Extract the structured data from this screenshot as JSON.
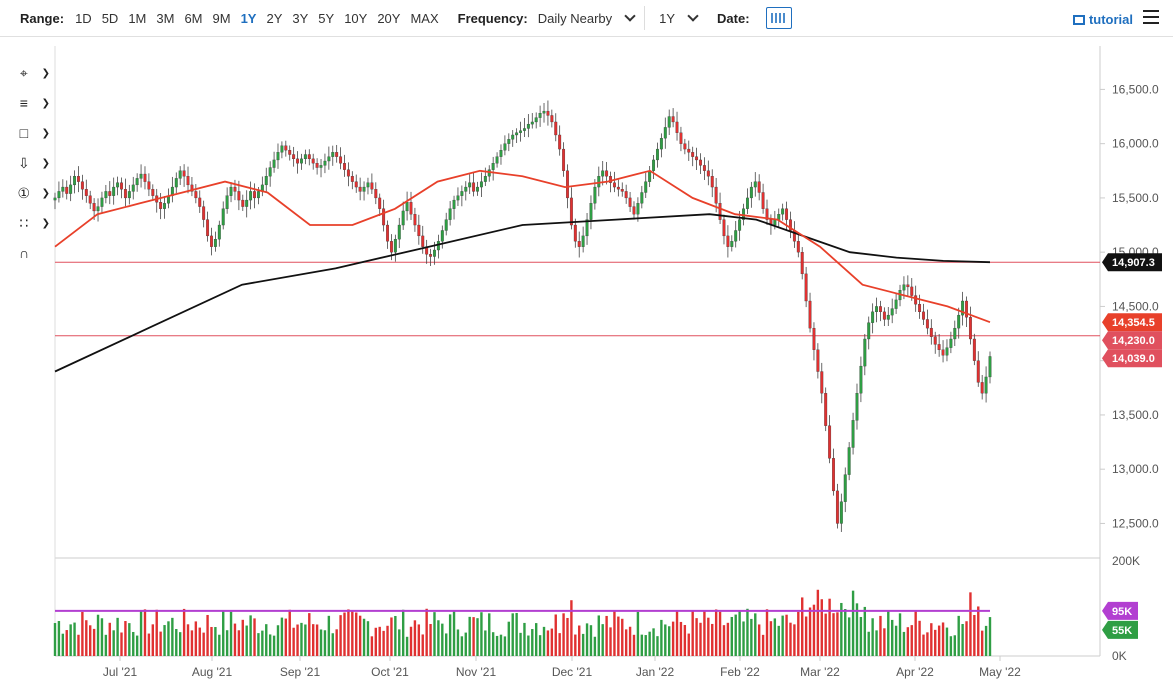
{
  "toolbar": {
    "range_label": "Range:",
    "ranges": [
      "1D",
      "5D",
      "1M",
      "3M",
      "6M",
      "9M",
      "1Y",
      "2Y",
      "3Y",
      "5Y",
      "10Y",
      "20Y",
      "MAX"
    ],
    "active_range": "1Y",
    "frequency_label": "Frequency:",
    "frequency_value": "Daily Nearby",
    "period_value": "1Y",
    "date_label": "Date:",
    "tutorial_label": "tutorial"
  },
  "side_tools": [
    "crosshair-tool-icon",
    "fibonacci-tool-icon",
    "rectangle-tool-icon",
    "arrow-down-tool-icon",
    "counter-tool-icon",
    "pattern-tool-icon",
    "magnet-tool-icon"
  ],
  "colors": {
    "up": "#2f9e44",
    "down": "#e03131",
    "ma_short": "#e8402a",
    "ma_long": "#111111",
    "hline": "#e0505e",
    "vol_avg": "#b23fd1",
    "axis_text": "#555555"
  },
  "chart_data": {
    "type": "candlestick",
    "x_ticks": [
      "Jul '21",
      "Aug '21",
      "Sep '21",
      "Oct '21",
      "Nov '21",
      "Dec '21",
      "Jan '22",
      "Feb '22",
      "Mar '22",
      "Apr '22",
      "May '22"
    ],
    "price_ticks": [
      "16,500.0",
      "16,000.0",
      "15,500.0",
      "15,000.0",
      "14,500.0",
      "14,000.0",
      "13,500.0",
      "13,000.0",
      "12,500.0"
    ],
    "price_tick_values": [
      16500,
      16000,
      15500,
      15000,
      14500,
      14000,
      13500,
      13000,
      12500
    ],
    "ylim": [
      12200,
      16900
    ],
    "volume_ticks": [
      "200K",
      "0K"
    ],
    "volume_tick_values": [
      200000,
      0
    ],
    "volume_ylim": [
      0,
      200000
    ],
    "badges": [
      {
        "label": "14,907.3",
        "value": 14907.3,
        "color": "#111111"
      },
      {
        "label": "14,354.5",
        "value": 14354.5,
        "color": "#e8402a"
      },
      {
        "label": "14,230.0",
        "value": 14230,
        "color": "#e0505e"
      },
      {
        "label": "14,039.0",
        "value": 14039,
        "color": "#e0505e"
      }
    ],
    "horizontal_lines": [
      14907,
      14230
    ],
    "volume_badges": [
      {
        "label": "95K",
        "value": 95000,
        "color": "#b23fd1"
      },
      {
        "label": "55K",
        "value": 55000,
        "color": "#2f9e44"
      }
    ],
    "closes": [
      15500,
      15560,
      15600,
      15540,
      15620,
      15700,
      15650,
      15580,
      15520,
      15450,
      15380,
      15420,
      15500,
      15560,
      15520,
      15600,
      15640,
      15580,
      15500,
      15560,
      15620,
      15680,
      15720,
      15650,
      15580,
      15520,
      15460,
      15400,
      15450,
      15520,
      15600,
      15680,
      15750,
      15700,
      15620,
      15560,
      15500,
      15420,
      15300,
      15150,
      15050,
      15120,
      15250,
      15400,
      15520,
      15600,
      15560,
      15480,
      15420,
      15480,
      15560,
      15500,
      15560,
      15620,
      15700,
      15780,
      15850,
      15920,
      15980,
      15940,
      15900,
      15860,
      15820,
      15860,
      15900,
      15860,
      15820,
      15780,
      15800,
      15840,
      15880,
      15920,
      15880,
      15820,
      15760,
      15700,
      15650,
      15600,
      15560,
      15600,
      15640,
      15580,
      15500,
      15400,
      15250,
      15100,
      15000,
      15120,
      15250,
      15380,
      15460,
      15350,
      15250,
      15150,
      15050,
      14980,
      14960,
      15020,
      15100,
      15200,
      15300,
      15400,
      15480,
      15520,
      15560,
      15600,
      15640,
      15560,
      15600,
      15650,
      15700,
      15760,
      15820,
      15880,
      15940,
      16000,
      16040,
      16080,
      16100,
      16120,
      16140,
      16180,
      16200,
      16240,
      16280,
      16300,
      16260,
      16200,
      16080,
      15950,
      15750,
      15500,
      15250,
      15100,
      15050,
      15150,
      15300,
      15450,
      15600,
      15700,
      15750,
      15700,
      15640,
      15600,
      15580,
      15560,
      15500,
      15420,
      15350,
      15450,
      15550,
      15650,
      15750,
      15850,
      15950,
      16050,
      16150,
      16250,
      16200,
      16100,
      16000,
      15950,
      15920,
      15880,
      15850,
      15800,
      15750,
      15700,
      15600,
      15450,
      15300,
      15150,
      15050,
      15100,
      15200,
      15300,
      15400,
      15500,
      15600,
      15650,
      15550,
      15400,
      15300,
      15250,
      15300,
      15350,
      15400,
      15300,
      15200,
      15100,
      15000,
      14800,
      14550,
      14300,
      14100,
      13900,
      13700,
      13400,
      13100,
      12800,
      12500,
      12700,
      12950,
      13200,
      13450,
      13700,
      13950,
      14200,
      14350,
      14450,
      14500,
      14450,
      14380,
      14420,
      14480,
      14560,
      14650,
      14700,
      14680,
      14600,
      14520,
      14450,
      14380,
      14300,
      14220,
      14150,
      14100,
      14050,
      14120,
      14200,
      14300,
      14420,
      14550,
      14400,
      14200,
      14000,
      13800,
      13700,
      13850,
      14039
    ],
    "ma_short_points": [
      [
        0,
        15050
      ],
      [
        20,
        15350
      ],
      [
        40,
        15450
      ],
      [
        60,
        15550
      ],
      [
        80,
        15650
      ],
      [
        100,
        15550
      ],
      [
        120,
        15250
      ],
      [
        140,
        15250
      ],
      [
        160,
        15400
      ],
      [
        180,
        15650
      ],
      [
        200,
        15750
      ],
      [
        220,
        15700
      ],
      [
        240,
        15600
      ],
      [
        260,
        15650
      ],
      [
        280,
        15750
      ],
      [
        300,
        15500
      ],
      [
        320,
        15350
      ],
      [
        340,
        15300
      ],
      [
        360,
        15050
      ],
      [
        380,
        14700
      ],
      [
        400,
        14600
      ],
      [
        420,
        14500
      ],
      [
        440,
        14354.5
      ]
    ],
    "ma_long_points": [
      [
        0,
        13900
      ],
      [
        40,
        14300
      ],
      [
        80,
        14700
      ],
      [
        120,
        14850
      ],
      [
        160,
        15050
      ],
      [
        200,
        15250
      ],
      [
        240,
        15300
      ],
      [
        280,
        15350
      ],
      [
        300,
        15300
      ],
      [
        320,
        15150
      ],
      [
        340,
        15000
      ],
      [
        360,
        14950
      ],
      [
        380,
        14920
      ],
      [
        400,
        14907.3
      ]
    ],
    "volume_avg": 95000
  }
}
